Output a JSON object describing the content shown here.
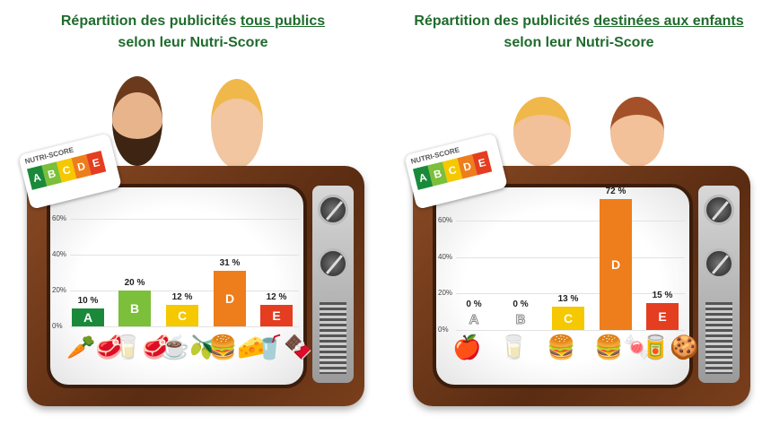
{
  "logo": {
    "text": "NUTRI-SCORE",
    "letters": [
      "A",
      "B",
      "C",
      "D",
      "E"
    ]
  },
  "colors": {
    "A": "#1a8a3a",
    "B": "#7bbf3a",
    "C": "#f5c800",
    "D": "#ee7d1c",
    "E": "#e43d20",
    "title": "#1f6b2c"
  },
  "chart_data": [
    {
      "type": "bar",
      "title_pre": "Répartition des publicités ",
      "title_emph": "tous publics",
      "title_post": "selon leur Nutri-Score",
      "categories": [
        "A",
        "B",
        "C",
        "D",
        "E"
      ],
      "values": [
        10,
        20,
        12,
        31,
        12
      ],
      "value_labels": [
        "10 %",
        "20 %",
        "12 %",
        "31 %",
        "12 %"
      ],
      "yticks": [
        "0%",
        "20%",
        "40%",
        "60%"
      ],
      "ylim": [
        0,
        60
      ],
      "grid": true
    },
    {
      "type": "bar",
      "title_pre": "Répartition des publicités ",
      "title_emph": "destinées aux enfants",
      "title_post": "selon leur Nutri-Score",
      "categories": [
        "A",
        "B",
        "C",
        "D",
        "E"
      ],
      "values": [
        0,
        0,
        13,
        72,
        15
      ],
      "value_labels": [
        "0 %",
        "0 %",
        "13 %",
        "72 %",
        "15 %"
      ],
      "yticks": [
        "0%",
        "20%",
        "40%",
        "60%"
      ],
      "ylim": [
        0,
        60
      ],
      "grid": true
    }
  ]
}
